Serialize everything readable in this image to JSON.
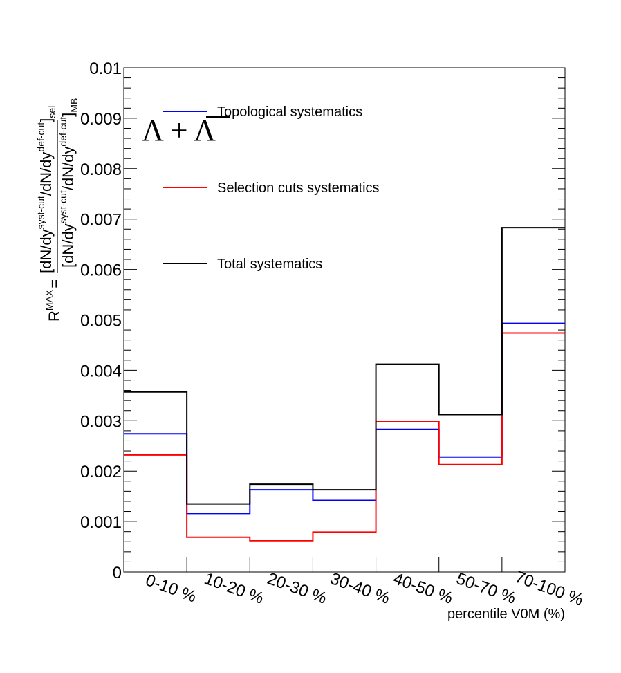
{
  "chart_data": {
    "type": "line",
    "drawstyle": "steps",
    "categories": [
      "0-10 %",
      "10-20 %",
      "20-30 %",
      "30-40 %",
      "40-50 %",
      "50-70 %",
      "70-100 %"
    ],
    "series": [
      {
        "name": "Topological systematics",
        "color": "#0000ff",
        "values": [
          0.00274,
          0.00116,
          0.00163,
          0.00142,
          0.00283,
          0.00228,
          0.00493
        ]
      },
      {
        "name": "Selection cuts systematics",
        "color": "#ff0000",
        "values": [
          0.00232,
          0.00069,
          0.00062,
          0.00079,
          0.00299,
          0.00213,
          0.00474
        ]
      },
      {
        "name": "Total systematics",
        "color": "#000000",
        "values": [
          0.00357,
          0.00135,
          0.00174,
          0.00163,
          0.00412,
          0.00312,
          0.00683
        ]
      }
    ],
    "ylim": [
      0,
      0.01
    ],
    "yticks": [
      "0",
      "0.001",
      "0.002",
      "0.003",
      "0.004",
      "0.005",
      "0.006",
      "0.007",
      "0.008",
      "0.009",
      "0.01"
    ],
    "xlabel": "percentile V0M (%)",
    "ylabel": {
      "lhs": "R",
      "lhs_sup": "MAX",
      "eq": "=",
      "num_open": "[dN/dy",
      "num_sup1": "syst-cut",
      "num_mid": "/dN/dy",
      "num_sup2": "def-cut",
      "num_close": "]",
      "num_sub": "sel",
      "den_open": "[dN/dy",
      "den_sup1": "syst-cut",
      "den_mid": "/dN/dy",
      "den_sup2": "def-cut",
      "den_close": "]",
      "den_sub": "MB"
    },
    "annotation": "Λ + Λ",
    "legend_position": "top-left",
    "grid": false
  }
}
